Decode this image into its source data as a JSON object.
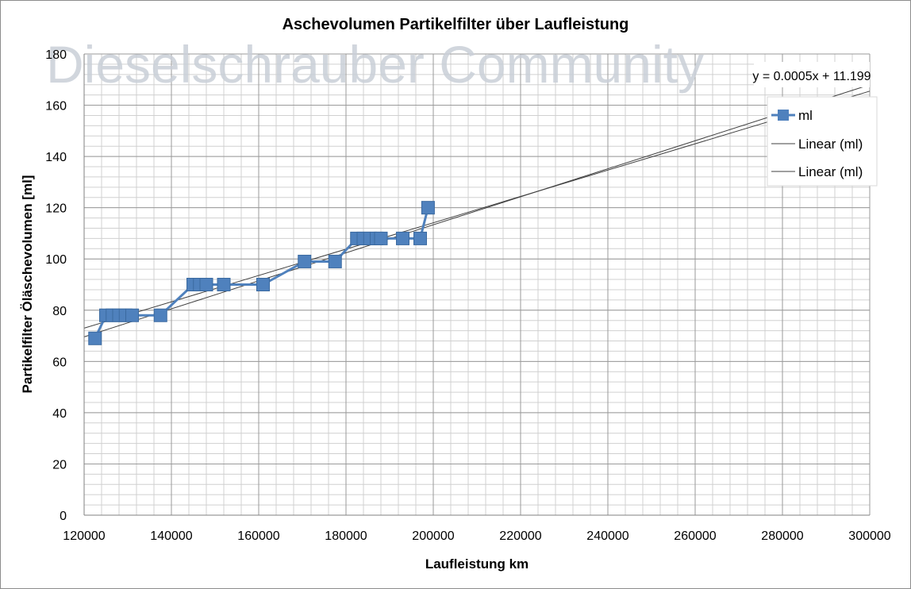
{
  "chart_data": {
    "type": "line",
    "title": "Aschevolumen Partikelfilter über Laufleistung",
    "xlabel": "Laufleistung km",
    "ylabel": "Partikelfilter Öläschevolumen [ml]",
    "xlim": [
      120000,
      300000
    ],
    "ylim": [
      0,
      180
    ],
    "x_ticks": [
      "120000",
      "140000",
      "160000",
      "180000",
      "200000",
      "220000",
      "240000",
      "260000",
      "280000",
      "300000"
    ],
    "y_ticks": [
      "0",
      "20",
      "40",
      "60",
      "80",
      "100",
      "120",
      "140",
      "160",
      "180"
    ],
    "grid": true,
    "legend_position": "right",
    "watermark": "Dieselschrauber Community",
    "series": [
      {
        "name": "ml",
        "color": "#4f81bd",
        "marker": "square",
        "x": [
          122500,
          125000,
          126500,
          128000,
          129500,
          131000,
          137500,
          145000,
          146500,
          148000,
          152000,
          161000,
          170500,
          177500,
          182500,
          184000,
          185500,
          187000,
          188000,
          193000,
          197000,
          198800
        ],
        "y": [
          69,
          78,
          78,
          78,
          78,
          78,
          78,
          90,
          90,
          90,
          90,
          90,
          99,
          99,
          108,
          108,
          108,
          108,
          108,
          108,
          108,
          120
        ]
      }
    ],
    "trendlines": [
      {
        "name": "Linear (ml)",
        "color": "#404040",
        "equation": "y = 0.0005x + 11.199",
        "x_range": [
          120000,
          300000
        ],
        "y_range": [
          69.6,
          168
        ]
      },
      {
        "name": "Linear (ml)",
        "color": "#404040",
        "equation": "",
        "x_range": [
          120000,
          300000
        ],
        "y_range": [
          73,
          165.5
        ]
      }
    ],
    "legend": [
      "ml",
      "Linear (ml)",
      "Linear (ml)"
    ]
  }
}
